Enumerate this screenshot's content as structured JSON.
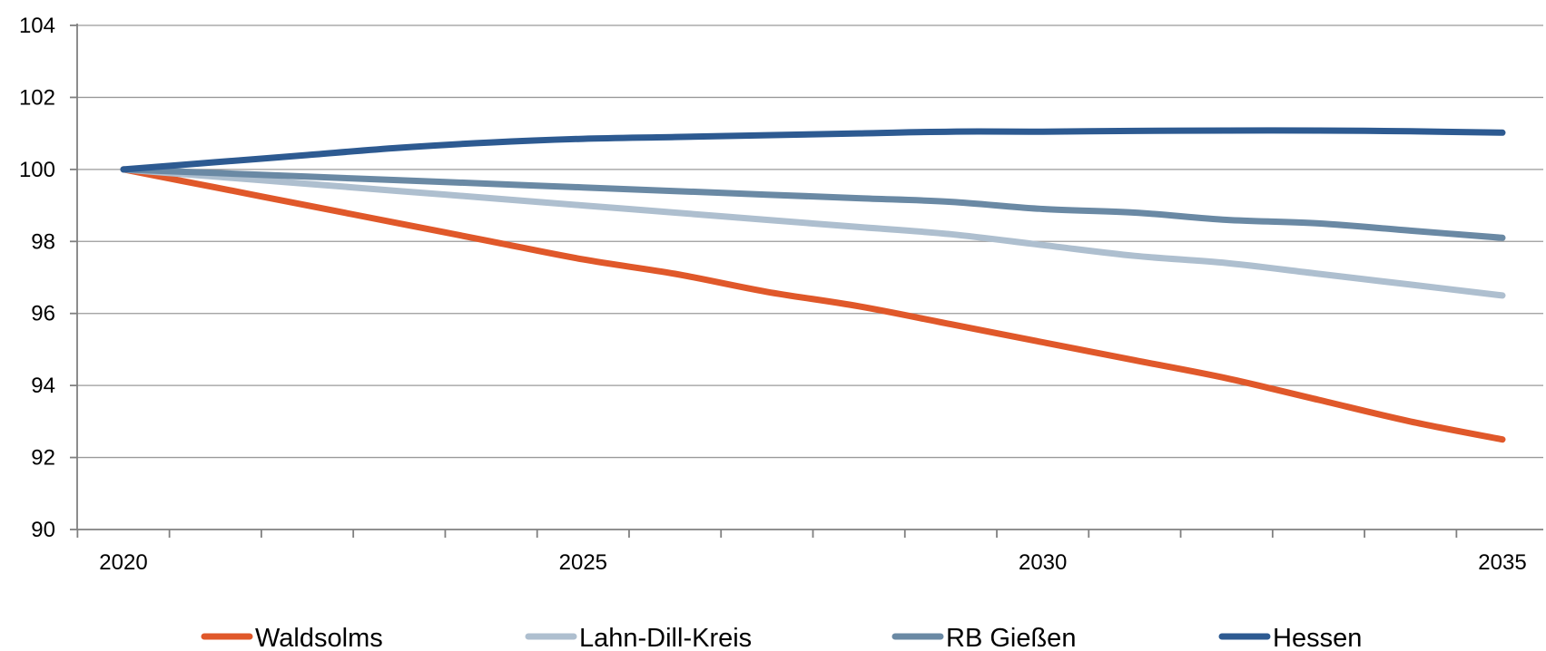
{
  "chart_data": {
    "type": "line",
    "title": "",
    "xlabel": "",
    "ylabel": "",
    "x": [
      2020,
      2021,
      2022,
      2023,
      2024,
      2025,
      2026,
      2027,
      2028,
      2029,
      2030,
      2031,
      2032,
      2033,
      2034,
      2035
    ],
    "x_ticks": [
      "2020",
      "2025",
      "2030",
      "2035"
    ],
    "ylim": [
      90,
      104
    ],
    "y_ticks": [
      "90",
      "92",
      "94",
      "96",
      "98",
      "100",
      "102",
      "104"
    ],
    "grid": true,
    "legend_position": "bottom",
    "series": [
      {
        "name": "Waldsolms",
        "color": "#e0582a",
        "values": [
          100.0,
          99.5,
          99.0,
          98.5,
          98.0,
          97.5,
          97.1,
          96.6,
          96.2,
          95.7,
          95.2,
          94.7,
          94.2,
          93.6,
          93.0,
          92.5
        ]
      },
      {
        "name": "Lahn-Dill-Kreis",
        "color": "#aebfcf",
        "values": [
          100.0,
          99.8,
          99.6,
          99.4,
          99.2,
          99.0,
          98.8,
          98.6,
          98.4,
          98.2,
          97.9,
          97.6,
          97.4,
          97.1,
          96.8,
          96.5
        ]
      },
      {
        "name": "RB Gießen",
        "color": "#6a89a4",
        "values": [
          100.0,
          99.9,
          99.8,
          99.7,
          99.6,
          99.5,
          99.4,
          99.3,
          99.2,
          99.1,
          98.9,
          98.8,
          98.6,
          98.5,
          98.3,
          98.1
        ]
      },
      {
        "name": "Hessen",
        "color": "#2d5a91",
        "values": [
          100.0,
          100.2,
          100.4,
          100.6,
          100.75,
          100.85,
          100.9,
          100.95,
          101.0,
          101.05,
          101.05,
          101.07,
          101.08,
          101.08,
          101.06,
          101.02
        ]
      }
    ]
  }
}
